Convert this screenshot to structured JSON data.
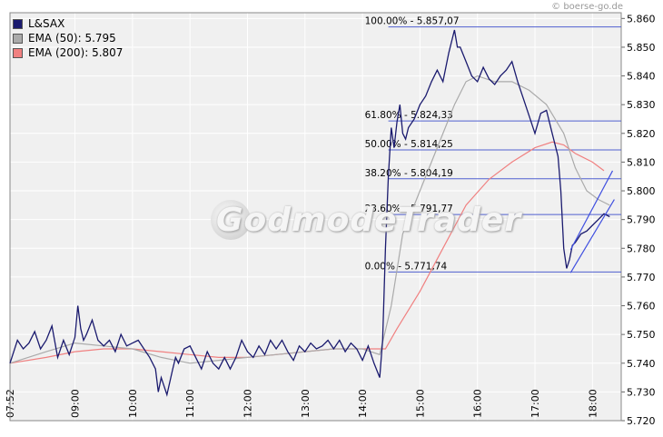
{
  "copyright": "© boerse-go.de",
  "watermark": "GodmodeTrader",
  "legend": [
    {
      "label": "L&SAX",
      "color": "#1a1a6e"
    },
    {
      "label": "EMA (50): 5.795",
      "color": "#aaaaaa"
    },
    {
      "label": "EMA (200): 5.807",
      "color": "#f08080"
    }
  ],
  "chart_data": {
    "type": "line",
    "ylim": [
      5.72,
      5.862
    ],
    "xlim": [
      7.87,
      18.5
    ],
    "y_ticks": [
      5.72,
      5.73,
      5.74,
      5.75,
      5.76,
      5.77,
      5.78,
      5.79,
      5.8,
      5.81,
      5.82,
      5.83,
      5.84,
      5.85,
      5.86
    ],
    "y_tick_labels": [
      "5.720",
      "5.730",
      "5.740",
      "5.750",
      "5.760",
      "5.770",
      "5.780",
      "5.790",
      "5.800",
      "5.810",
      "5.820",
      "5.830",
      "5.840",
      "5.850",
      "5.860"
    ],
    "x_ticks": [
      {
        "x": 7.87,
        "label": "07:52"
      },
      {
        "x": 9,
        "label": "09:00"
      },
      {
        "x": 10,
        "label": "10:00"
      },
      {
        "x": 11,
        "label": "11:00"
      },
      {
        "x": 12,
        "label": "12:00"
      },
      {
        "x": 13,
        "label": "13:00"
      },
      {
        "x": 14,
        "label": "14:00"
      },
      {
        "x": 15,
        "label": "15:00"
      },
      {
        "x": 16,
        "label": "16:00"
      },
      {
        "x": 17,
        "label": "17:00"
      },
      {
        "x": 18,
        "label": "18:00"
      }
    ],
    "fib_levels": [
      {
        "value": 5.85707,
        "label": "100.00% - 5.857,07"
      },
      {
        "value": 5.82433,
        "label": "61.80% - 5.824,33"
      },
      {
        "value": 5.81425,
        "label": "50.00% - 5.814,25"
      },
      {
        "value": 5.80419,
        "label": "38.20% - 5.804,19"
      },
      {
        "value": 5.79177,
        "label": "23.60% - 5.791,77"
      },
      {
        "value": 5.77174,
        "label": "0.00% - 5.771,74"
      }
    ],
    "fib_xrange": [
      14.45,
      18.5
    ],
    "channel_lines": [
      {
        "x": [
          17.62,
          18.38
        ],
        "y": [
          5.7715,
          5.797
        ]
      },
      {
        "x": [
          17.62,
          18.35
        ],
        "y": [
          5.7795,
          5.807
        ]
      }
    ],
    "series": [
      {
        "name": "L&SAX",
        "color": "#1a1a6e",
        "x": [
          7.87,
          8.0,
          8.1,
          8.2,
          8.3,
          8.4,
          8.5,
          8.6,
          8.7,
          8.8,
          8.9,
          9.0,
          9.05,
          9.1,
          9.15,
          9.2,
          9.3,
          9.4,
          9.5,
          9.6,
          9.7,
          9.8,
          9.9,
          10.0,
          10.1,
          10.2,
          10.3,
          10.4,
          10.45,
          10.5,
          10.6,
          10.7,
          10.75,
          10.8,
          10.9,
          11.0,
          11.1,
          11.2,
          11.3,
          11.4,
          11.5,
          11.6,
          11.7,
          11.8,
          11.9,
          12.0,
          12.1,
          12.2,
          12.3,
          12.4,
          12.5,
          12.6,
          12.7,
          12.8,
          12.9,
          13.0,
          13.1,
          13.2,
          13.3,
          13.4,
          13.5,
          13.6,
          13.7,
          13.8,
          13.9,
          14.0,
          14.1,
          14.2,
          14.3,
          14.35,
          14.4,
          14.45,
          14.5,
          14.55,
          14.6,
          14.65,
          14.7,
          14.75,
          14.8,
          14.9,
          15.0,
          15.1,
          15.2,
          15.3,
          15.4,
          15.5,
          15.6,
          15.65,
          15.7,
          15.8,
          15.9,
          16.0,
          16.1,
          16.2,
          16.3,
          16.4,
          16.5,
          16.6,
          16.7,
          16.8,
          16.9,
          17.0,
          17.1,
          17.2,
          17.3,
          17.4,
          17.45,
          17.5,
          17.55,
          17.6,
          17.65,
          17.7,
          17.8,
          17.9,
          18.0,
          18.1,
          18.2,
          18.3
        ],
        "y": [
          5.74,
          5.748,
          5.745,
          5.747,
          5.751,
          5.745,
          5.748,
          5.753,
          5.742,
          5.748,
          5.743,
          5.749,
          5.76,
          5.752,
          5.748,
          5.75,
          5.755,
          5.748,
          5.746,
          5.748,
          5.744,
          5.75,
          5.746,
          5.747,
          5.748,
          5.745,
          5.742,
          5.738,
          5.73,
          5.735,
          5.729,
          5.738,
          5.742,
          5.74,
          5.745,
          5.746,
          5.742,
          5.738,
          5.744,
          5.74,
          5.738,
          5.742,
          5.738,
          5.742,
          5.748,
          5.744,
          5.742,
          5.746,
          5.743,
          5.748,
          5.745,
          5.748,
          5.744,
          5.741,
          5.746,
          5.744,
          5.747,
          5.745,
          5.746,
          5.748,
          5.745,
          5.748,
          5.744,
          5.747,
          5.745,
          5.741,
          5.746,
          5.74,
          5.735,
          5.748,
          5.78,
          5.805,
          5.822,
          5.815,
          5.824,
          5.83,
          5.82,
          5.818,
          5.822,
          5.825,
          5.83,
          5.833,
          5.838,
          5.842,
          5.838,
          5.848,
          5.856,
          5.85,
          5.85,
          5.845,
          5.84,
          5.838,
          5.843,
          5.839,
          5.837,
          5.84,
          5.842,
          5.845,
          5.838,
          5.832,
          5.826,
          5.82,
          5.827,
          5.828,
          5.82,
          5.812,
          5.8,
          5.78,
          5.773,
          5.776,
          5.781,
          5.782,
          5.785,
          5.786,
          5.788,
          5.79,
          5.792,
          5.791
        ]
      },
      {
        "name": "EMA (50): 5.795",
        "color": "#aaaaaa",
        "x": [
          7.87,
          8.5,
          9.0,
          9.5,
          10.0,
          10.5,
          11.0,
          11.5,
          12.0,
          12.5,
          13.0,
          13.5,
          14.0,
          14.3,
          14.5,
          14.7,
          15.0,
          15.3,
          15.6,
          15.8,
          16.0,
          16.3,
          16.6,
          16.9,
          17.2,
          17.5,
          17.7,
          17.9,
          18.1,
          18.3
        ],
        "y": [
          5.74,
          5.744,
          5.747,
          5.746,
          5.745,
          5.742,
          5.74,
          5.741,
          5.742,
          5.743,
          5.744,
          5.745,
          5.745,
          5.743,
          5.76,
          5.785,
          5.8,
          5.815,
          5.83,
          5.838,
          5.84,
          5.838,
          5.838,
          5.835,
          5.83,
          5.82,
          5.808,
          5.8,
          5.797,
          5.795
        ]
      },
      {
        "name": "EMA (200): 5.807",
        "color": "#f08080",
        "x": [
          7.87,
          8.5,
          9.0,
          9.5,
          10.0,
          10.5,
          11.0,
          11.5,
          12.0,
          12.5,
          13.0,
          13.5,
          14.0,
          14.4,
          14.6,
          15.0,
          15.4,
          15.8,
          16.2,
          16.6,
          17.0,
          17.3,
          17.5,
          17.7,
          18.0,
          18.2
        ],
        "y": [
          5.74,
          5.742,
          5.744,
          5.745,
          5.745,
          5.744,
          5.743,
          5.742,
          5.742,
          5.743,
          5.744,
          5.745,
          5.745,
          5.745,
          5.752,
          5.765,
          5.78,
          5.795,
          5.804,
          5.81,
          5.815,
          5.817,
          5.816,
          5.813,
          5.81,
          5.807
        ]
      }
    ]
  }
}
